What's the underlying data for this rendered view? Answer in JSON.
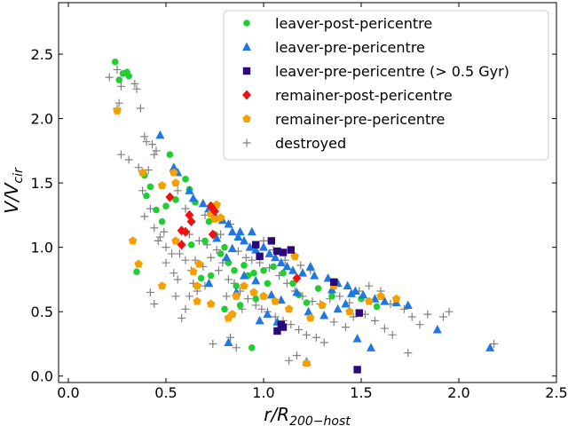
{
  "chart_data": {
    "type": "scatter",
    "title": "",
    "xlabel": "r/R",
    "xlabel_sub": "200−host",
    "ylabel": "V/V",
    "ylabel_sub": "cir",
    "xlim": [
      -0.05,
      2.5
    ],
    "ylim": [
      -0.05,
      2.9
    ],
    "xticks": [
      0.0,
      0.5,
      1.0,
      1.5,
      2.0,
      2.5
    ],
    "xtick_labels": [
      "0.0",
      "0.5",
      "1.0",
      "1.5",
      "2.0",
      "2.5"
    ],
    "yticks": [
      0.0,
      0.5,
      1.0,
      1.5,
      2.0,
      2.5
    ],
    "ytick_labels": [
      "0.0",
      "0.5",
      "1.0",
      "1.5",
      "2.0",
      "2.5"
    ],
    "grid": false,
    "legend_position": "top-right",
    "series": [
      {
        "name": "leaver-post-pericentre",
        "marker": "circle",
        "color": "#22cc33",
        "points": [
          [
            0.24,
            2.44
          ],
          [
            0.3,
            2.36
          ],
          [
            0.31,
            2.33
          ],
          [
            0.28,
            2.35
          ],
          [
            0.26,
            2.3
          ],
          [
            0.35,
            0.81
          ],
          [
            0.39,
            1.56
          ],
          [
            0.42,
            1.47
          ],
          [
            0.4,
            1.4
          ],
          [
            0.45,
            1.29
          ],
          [
            0.5,
            1.32
          ],
          [
            0.52,
            1.72
          ],
          [
            0.55,
            1.37
          ],
          [
            0.6,
            1.53
          ],
          [
            0.62,
            1.45
          ],
          [
            0.65,
            1.35
          ],
          [
            0.48,
            1.2
          ],
          [
            0.72,
            1.2
          ],
          [
            0.75,
            1.1
          ],
          [
            0.7,
            1.05
          ],
          [
            0.78,
            0.95
          ],
          [
            0.82,
            0.88
          ],
          [
            0.85,
            0.82
          ],
          [
            0.9,
            0.86
          ],
          [
            0.92,
            0.78
          ],
          [
            0.95,
            0.8
          ],
          [
            1.0,
            0.82
          ],
          [
            1.05,
            0.85
          ],
          [
            0.8,
            0.52
          ],
          [
            0.88,
            0.55
          ],
          [
            0.96,
            0.6
          ],
          [
            1.02,
            0.72
          ],
          [
            1.1,
            0.8
          ],
          [
            1.15,
            0.72
          ],
          [
            1.22,
            0.57
          ],
          [
            1.28,
            0.68
          ],
          [
            1.35,
            0.62
          ],
          [
            1.5,
            0.6
          ],
          [
            1.58,
            0.54
          ],
          [
            0.94,
            0.22
          ],
          [
            0.63,
            1.02
          ],
          [
            0.73,
            0.78
          ],
          [
            0.68,
            0.76
          ],
          [
            0.86,
            0.7
          ],
          [
            1.18,
            0.63
          ],
          [
            0.8,
            1.0
          ]
        ]
      },
      {
        "name": "leaver-pre-pericentre",
        "marker": "triangle",
        "color": "#1f77e0",
        "points": [
          [
            0.47,
            1.87
          ],
          [
            0.54,
            1.62
          ],
          [
            0.56,
            1.58
          ],
          [
            0.62,
            1.44
          ],
          [
            0.64,
            1.38
          ],
          [
            0.69,
            1.34
          ],
          [
            0.72,
            1.3
          ],
          [
            0.75,
            1.25
          ],
          [
            0.79,
            1.21
          ],
          [
            0.82,
            1.18
          ],
          [
            0.84,
            1.12
          ],
          [
            0.87,
            1.08
          ],
          [
            0.9,
            1.05
          ],
          [
            0.93,
            1.0
          ],
          [
            0.96,
            0.98
          ],
          [
            1.0,
            1.0
          ],
          [
            1.03,
            0.95
          ],
          [
            1.06,
            0.92
          ],
          [
            1.09,
            0.88
          ],
          [
            1.12,
            0.85
          ],
          [
            1.15,
            0.82
          ],
          [
            1.2,
            0.8
          ],
          [
            1.26,
            0.78
          ],
          [
            1.33,
            0.76
          ],
          [
            1.38,
            0.72
          ],
          [
            1.43,
            0.7
          ],
          [
            1.47,
            0.66
          ],
          [
            1.51,
            0.63
          ],
          [
            1.57,
            0.6
          ],
          [
            1.62,
            0.58
          ],
          [
            1.68,
            0.57
          ],
          [
            1.74,
            0.55
          ],
          [
            1.89,
            0.36
          ],
          [
            2.16,
            0.22
          ],
          [
            1.48,
            0.29
          ],
          [
            1.55,
            0.22
          ],
          [
            1.22,
            0.11
          ],
          [
            1.24,
            0.85
          ],
          [
            1.17,
            0.65
          ],
          [
            1.09,
            0.59
          ],
          [
            1.02,
            0.48
          ],
          [
            0.98,
            0.43
          ],
          [
            1.07,
            0.42
          ],
          [
            1.23,
            0.5
          ],
          [
            1.31,
            0.47
          ],
          [
            1.38,
            0.52
          ],
          [
            1.42,
            0.56
          ],
          [
            0.86,
            0.65
          ],
          [
            0.82,
            0.26
          ],
          [
            0.94,
            1.12
          ],
          [
            0.76,
            1.07
          ],
          [
            0.84,
            0.99
          ],
          [
            0.9,
            0.78
          ],
          [
            0.96,
            0.74
          ],
          [
            1.04,
            0.63
          ],
          [
            1.35,
            0.67
          ],
          [
            1.45,
            0.64
          ],
          [
            0.72,
            0.72
          ],
          [
            0.81,
            0.92
          ],
          [
            0.88,
            1.12
          ]
        ]
      },
      {
        "name": "leaver-pre-pericentre (> 0.5 Gyr)",
        "marker": "square",
        "color": "#2a0a7a",
        "points": [
          [
            0.96,
            1.02
          ],
          [
            0.98,
            0.93
          ],
          [
            1.04,
            1.05
          ],
          [
            1.07,
            0.97
          ],
          [
            1.1,
            0.96
          ],
          [
            1.14,
            0.98
          ],
          [
            1.07,
            0.35
          ],
          [
            1.1,
            0.38
          ],
          [
            1.36,
            0.73
          ],
          [
            1.49,
            0.49
          ],
          [
            1.48,
            0.05
          ],
          [
            1.09,
            0.4
          ]
        ]
      },
      {
        "name": "remainer-post-pericentre",
        "marker": "diamond",
        "color": "#ee1111",
        "points": [
          [
            0.52,
            1.39
          ],
          [
            0.58,
            1.13
          ],
          [
            0.6,
            1.12
          ],
          [
            0.62,
            1.25
          ],
          [
            0.63,
            1.2
          ],
          [
            0.58,
            1.02
          ],
          [
            0.73,
            1.32
          ],
          [
            0.75,
            1.28
          ],
          [
            0.74,
            1.1
          ],
          [
            1.17,
            0.76
          ]
        ]
      },
      {
        "name": "remainer-pre-pericentre",
        "marker": "pentagon",
        "color": "#f5a000",
        "points": [
          [
            0.25,
            2.06
          ],
          [
            0.33,
            1.05
          ],
          [
            0.36,
            0.87
          ],
          [
            0.38,
            1.58
          ],
          [
            0.48,
            1.48
          ],
          [
            0.48,
            0.7
          ],
          [
            0.54,
            1.58
          ],
          [
            0.55,
            1.5
          ],
          [
            0.55,
            1.05
          ],
          [
            0.64,
            0.81
          ],
          [
            0.67,
            0.87
          ],
          [
            0.66,
            0.7
          ],
          [
            0.66,
            0.58
          ],
          [
            0.73,
            1.26
          ],
          [
            0.75,
            1.22
          ],
          [
            0.76,
            1.33
          ],
          [
            0.78,
            1.23
          ],
          [
            0.73,
            0.56
          ],
          [
            0.82,
            0.45
          ],
          [
            0.84,
            0.48
          ],
          [
            0.86,
            0.62
          ],
          [
            0.9,
            0.7
          ],
          [
            0.95,
            0.65
          ],
          [
            1.0,
            0.62
          ],
          [
            1.06,
            0.58
          ],
          [
            1.13,
            0.52
          ],
          [
            1.22,
            0.1
          ],
          [
            1.3,
            0.55
          ],
          [
            1.36,
            0.7
          ],
          [
            1.44,
            0.5
          ],
          [
            1.54,
            0.58
          ],
          [
            1.6,
            0.62
          ],
          [
            1.68,
            0.6
          ],
          [
            1.24,
            0.45
          ],
          [
            1.16,
            0.93
          ]
        ]
      },
      {
        "name": "destroyed",
        "marker": "plus",
        "color": "#808080",
        "points": [
          [
            0.25,
            2.38
          ],
          [
            0.21,
            2.32
          ],
          [
            0.27,
            2.25
          ],
          [
            0.34,
            2.27
          ],
          [
            0.35,
            2.23
          ],
          [
            0.26,
            2.12
          ],
          [
            0.25,
            2.08
          ],
          [
            0.37,
            2.08
          ],
          [
            0.27,
            1.72
          ],
          [
            0.31,
            1.68
          ],
          [
            0.39,
            1.86
          ],
          [
            0.4,
            1.82
          ],
          [
            0.43,
            1.8
          ],
          [
            0.44,
            1.72
          ],
          [
            0.36,
            1.62
          ],
          [
            0.41,
            1.6
          ],
          [
            0.45,
            1.75
          ],
          [
            0.38,
            1.44
          ],
          [
            0.42,
            1.3
          ],
          [
            0.39,
            1.24
          ],
          [
            0.44,
            1.15
          ],
          [
            0.49,
            1.12
          ],
          [
            0.46,
            1.05
          ],
          [
            0.5,
            1.0
          ],
          [
            0.53,
            0.95
          ],
          [
            0.42,
            0.65
          ],
          [
            0.44,
            0.56
          ],
          [
            0.5,
            0.88
          ],
          [
            0.54,
            0.8
          ],
          [
            0.56,
            0.75
          ],
          [
            0.6,
            0.9
          ],
          [
            0.63,
            0.82
          ],
          [
            0.58,
            0.45
          ],
          [
            0.62,
            0.62
          ],
          [
            0.66,
            0.66
          ],
          [
            0.7,
            0.7
          ],
          [
            0.73,
            0.92
          ],
          [
            0.76,
            0.98
          ],
          [
            0.79,
            0.88
          ],
          [
            0.82,
            0.75
          ],
          [
            0.85,
            0.72
          ],
          [
            0.88,
            0.66
          ],
          [
            0.92,
            0.6
          ],
          [
            0.96,
            0.55
          ],
          [
            0.99,
            0.52
          ],
          [
            1.02,
            0.5
          ],
          [
            1.06,
            0.46
          ],
          [
            1.1,
            0.43
          ],
          [
            1.14,
            0.4
          ],
          [
            1.18,
            0.36
          ],
          [
            1.22,
            0.32
          ],
          [
            1.27,
            0.3
          ],
          [
            1.31,
            0.26
          ],
          [
            1.36,
            0.42
          ],
          [
            1.42,
            0.38
          ],
          [
            1.46,
            0.46
          ],
          [
            1.52,
            0.48
          ],
          [
            1.57,
            0.43
          ],
          [
            1.62,
            0.37
          ],
          [
            1.66,
            0.32
          ],
          [
            1.72,
            0.52
          ],
          [
            1.76,
            0.46
          ],
          [
            1.8,
            0.4
          ],
          [
            1.84,
            0.48
          ],
          [
            1.92,
            0.46
          ],
          [
            1.95,
            0.5
          ],
          [
            1.74,
            0.18
          ],
          [
            2.18,
            0.25
          ],
          [
            0.74,
            0.25
          ],
          [
            0.83,
            0.3
          ],
          [
            0.86,
            0.22
          ],
          [
            1.13,
            0.12
          ],
          [
            1.17,
            0.16
          ],
          [
            0.67,
            1.05
          ],
          [
            0.71,
            1.02
          ],
          [
            0.77,
            0.82
          ],
          [
            0.81,
            0.62
          ],
          [
            0.89,
            0.52
          ],
          [
            0.94,
            0.9
          ],
          [
            0.98,
            0.88
          ],
          [
            1.03,
            0.84
          ],
          [
            1.08,
            0.78
          ],
          [
            1.12,
            0.72
          ],
          [
            1.16,
            0.66
          ],
          [
            1.2,
            0.62
          ],
          [
            1.25,
            0.58
          ],
          [
            1.29,
            0.56
          ],
          [
            1.34,
            0.6
          ],
          [
            1.39,
            0.62
          ],
          [
            1.44,
            0.57
          ],
          [
            1.49,
            0.66
          ],
          [
            1.54,
            0.7
          ],
          [
            1.6,
            0.66
          ],
          [
            1.65,
            0.56
          ],
          [
            0.55,
            0.62
          ],
          [
            0.6,
            0.52
          ],
          [
            0.65,
            0.9
          ],
          [
            0.69,
            0.85
          ],
          [
            0.62,
            1.1
          ],
          [
            0.7,
            1.25
          ],
          [
            0.47,
            1.08
          ],
          [
            0.57,
            0.95
          ],
          [
            0.64,
            0.72
          ],
          [
            0.78,
            1.1
          ],
          [
            0.83,
            1.18
          ],
          [
            0.87,
            0.97
          ],
          [
            0.91,
            0.92
          ],
          [
            1.0,
            1.05
          ],
          [
            1.05,
            0.98
          ],
          [
            1.11,
            0.9
          ],
          [
            1.19,
            0.86
          ],
          [
            1.24,
            0.82
          ],
          [
            0.6,
            1.3
          ],
          [
            0.56,
            1.44
          ]
        ]
      }
    ]
  }
}
